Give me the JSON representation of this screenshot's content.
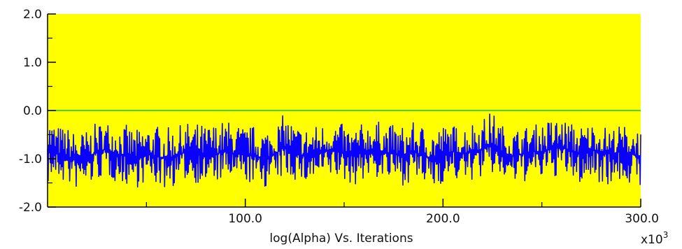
{
  "chart_data": {
    "type": "line",
    "title": "",
    "xlabel": "log(Alpha) Vs. Iterations",
    "ylabel": "",
    "x_multiplier": "x10",
    "x_multiplier_exp": "3",
    "xlim": [
      0,
      300
    ],
    "ylim": [
      -2.0,
      2.0
    ],
    "x_ticks": [
      100.0,
      200.0,
      300.0
    ],
    "x_tick_labels": [
      "100.0",
      "200.0",
      "300.0"
    ],
    "x_minor_ticks": [
      50,
      150,
      250
    ],
    "y_ticks": [
      2.0,
      1.0,
      0.0,
      -1.0,
      -2.0
    ],
    "y_tick_labels": [
      "2.0",
      "1.0",
      "0.0",
      "-1.0",
      "-2.0"
    ],
    "y_minor_ticks": [
      1.5,
      0.5,
      -0.5,
      -1.5
    ],
    "reference_line": {
      "y": 0.0,
      "color": "#44d744"
    },
    "plot_background": "#ffff00",
    "series": [
      {
        "color": "#0a00ff",
        "x": [
          0,
          5,
          10,
          15,
          20,
          25,
          30,
          35,
          40,
          45,
          50,
          55,
          60,
          65,
          70,
          75,
          80,
          85,
          90,
          95,
          100,
          105,
          110,
          115,
          120,
          125,
          130,
          135,
          140,
          145,
          150,
          155,
          160,
          165,
          170,
          175,
          180,
          185,
          190,
          195,
          200,
          205,
          210,
          215,
          220,
          225,
          230,
          235,
          240,
          245,
          250,
          255,
          260,
          265,
          270,
          275,
          280,
          285,
          290,
          295,
          300
        ],
        "mean": [
          -0.8,
          -0.9,
          -0.95,
          -1.05,
          -1.0,
          -0.85,
          -0.8,
          -0.9,
          -0.95,
          -1.0,
          -0.9,
          -0.95,
          -1.0,
          -0.95,
          -0.85,
          -0.9,
          -0.95,
          -0.9,
          -0.85,
          -0.9,
          -0.9,
          -0.95,
          -1.0,
          -0.9,
          -0.75,
          -0.85,
          -0.95,
          -0.9,
          -0.85,
          -0.8,
          -0.9,
          -0.95,
          -0.85,
          -0.8,
          -0.85,
          -0.9,
          -0.95,
          -0.85,
          -0.95,
          -1.0,
          -0.9,
          -0.85,
          -0.9,
          -0.85,
          -0.8,
          -0.7,
          -0.85,
          -0.95,
          -0.9,
          -0.85,
          -0.85,
          -0.8,
          -0.75,
          -0.85,
          -0.9,
          -0.8,
          -0.85,
          -0.9,
          -0.85,
          -0.9,
          -0.95
        ],
        "upper": [
          -0.1,
          -0.3,
          -0.35,
          -0.45,
          -0.4,
          -0.25,
          -0.2,
          -0.25,
          -0.3,
          -0.4,
          -0.3,
          -0.3,
          -0.35,
          -0.35,
          -0.25,
          -0.25,
          -0.3,
          -0.25,
          -0.2,
          -0.25,
          -0.35,
          -0.3,
          -0.35,
          -0.3,
          -0.05,
          -0.3,
          -0.35,
          -0.3,
          -0.25,
          -0.2,
          -0.3,
          -0.35,
          -0.25,
          -0.2,
          -0.25,
          -0.3,
          -0.3,
          -0.25,
          -0.3,
          -0.35,
          -0.3,
          -0.3,
          -0.3,
          -0.2,
          -0.15,
          -0.0,
          -0.3,
          -0.4,
          -0.35,
          -0.3,
          -0.25,
          -0.15,
          -0.15,
          -0.25,
          -0.3,
          -0.25,
          -0.3,
          -0.35,
          -0.3,
          -0.3,
          -0.35
        ],
        "lower": [
          -1.55,
          -1.45,
          -1.55,
          -1.65,
          -1.6,
          -1.45,
          -1.4,
          -1.5,
          -1.55,
          -1.6,
          -1.5,
          -1.55,
          -1.65,
          -1.55,
          -1.45,
          -1.5,
          -1.55,
          -1.5,
          -1.45,
          -1.5,
          -1.5,
          -1.55,
          -1.6,
          -1.5,
          -1.4,
          -1.45,
          -1.55,
          -1.5,
          -1.45,
          -1.4,
          -1.5,
          -1.55,
          -1.45,
          -1.4,
          -1.45,
          -1.5,
          -1.55,
          -1.45,
          -1.55,
          -1.65,
          -1.5,
          -1.45,
          -1.5,
          -1.45,
          -1.4,
          -1.35,
          -1.45,
          -1.55,
          -1.5,
          -1.45,
          -1.45,
          -1.4,
          -1.35,
          -1.45,
          -1.55,
          -1.45,
          -1.5,
          -1.55,
          -1.5,
          -1.55,
          -1.65
        ]
      }
    ]
  }
}
